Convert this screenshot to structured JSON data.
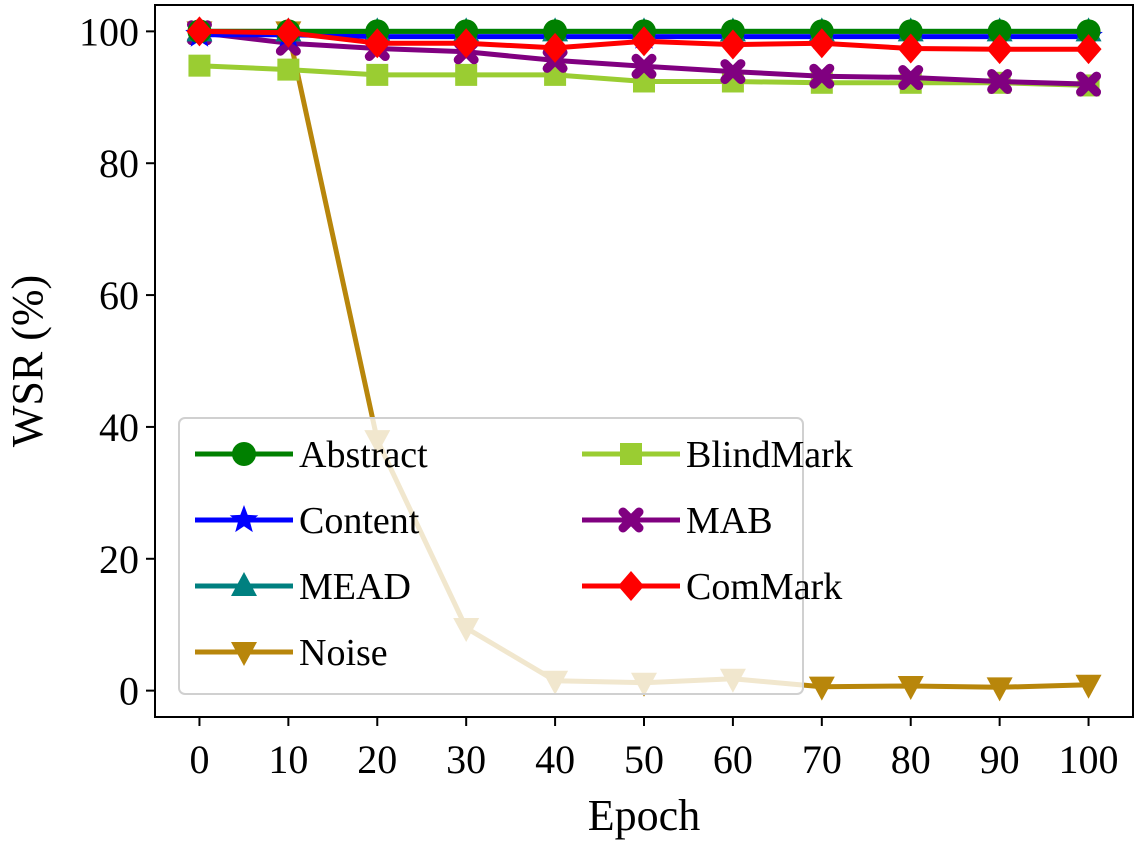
{
  "chart_data": {
    "type": "line",
    "title": "",
    "xlabel": "Epoch",
    "ylabel": "WSR (%)",
    "xlim": [
      -5,
      105
    ],
    "ylim": [
      -4,
      104
    ],
    "xticks": [
      0,
      10,
      20,
      30,
      40,
      50,
      60,
      70,
      80,
      90,
      100
    ],
    "yticks": [
      0,
      20,
      40,
      60,
      80,
      100
    ],
    "grid": false,
    "legend_position": "lower-left",
    "x": [
      0,
      10,
      20,
      30,
      40,
      50,
      60,
      70,
      80,
      90,
      100
    ],
    "series": [
      {
        "name": "Abstract",
        "color": "#008000",
        "marker": "circle",
        "values": [
          100,
          100,
          100,
          100,
          100,
          100,
          100,
          100,
          100,
          100,
          100
        ]
      },
      {
        "name": "Content",
        "color": "#0000ff",
        "marker": "star",
        "values": [
          99.5,
          99.5,
          99.2,
          99.2,
          99.2,
          99.2,
          99.2,
          99.2,
          99.2,
          99.2,
          99.2
        ]
      },
      {
        "name": "MEAD",
        "color": "#008080",
        "marker": "triangle-up",
        "values": [
          100,
          100,
          100,
          100,
          100,
          100,
          100,
          100,
          100,
          100,
          100
        ]
      },
      {
        "name": "Noise",
        "color": "#b8860b",
        "marker": "triangle-down",
        "values": [
          100,
          100,
          38,
          9.5,
          1.5,
          1.2,
          1.8,
          0.6,
          0.7,
          0.5,
          0.9
        ]
      },
      {
        "name": "BlindMark",
        "color": "#9acd32",
        "marker": "square",
        "values": [
          94.8,
          94.2,
          93.4,
          93.4,
          93.4,
          92.4,
          92.4,
          92.2,
          92.2,
          92.2,
          91.8
        ]
      },
      {
        "name": "MAB",
        "color": "#800080",
        "marker": "x",
        "values": [
          99.8,
          98.2,
          97.4,
          96.9,
          95.6,
          94.7,
          93.9,
          93.2,
          93.0,
          92.4,
          92.0
        ]
      },
      {
        "name": "ComMark",
        "color": "#ff0000",
        "marker": "diamond",
        "values": [
          100,
          99.8,
          98.2,
          98.2,
          97.5,
          98.5,
          98.0,
          98.2,
          97.4,
          97.3,
          97.3
        ]
      }
    ]
  }
}
